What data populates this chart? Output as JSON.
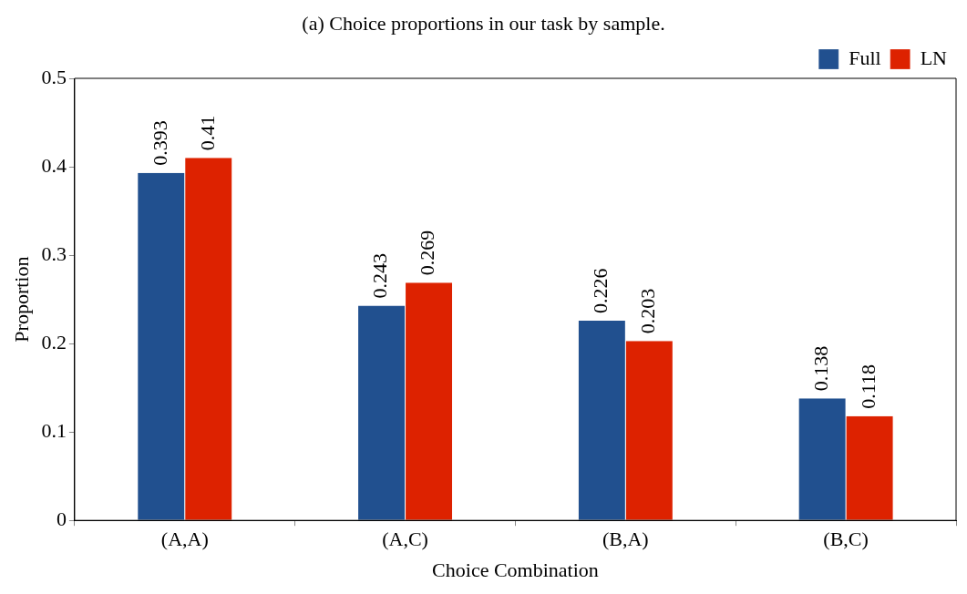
{
  "chart_data": {
    "type": "bar",
    "title": "(a) Choice proportions in our task by sample.",
    "xlabel": "Choice Combination",
    "ylabel": "Proportion",
    "categories": [
      "(A,A)",
      "(A,C)",
      "(B,A)",
      "(B,C)"
    ],
    "series": [
      {
        "name": "Full",
        "color": "#21508f",
        "values": [
          0.393,
          0.243,
          0.226,
          0.138
        ]
      },
      {
        "name": "LN",
        "color": "#dd2200",
        "values": [
          0.41,
          0.269,
          0.203,
          0.118
        ]
      }
    ],
    "ylim": [
      0,
      0.5
    ],
    "yticks": [
      0,
      0.1,
      0.2,
      0.3,
      0.4,
      0.5
    ],
    "grid": false,
    "legend": "top right",
    "data_labels": true
  }
}
